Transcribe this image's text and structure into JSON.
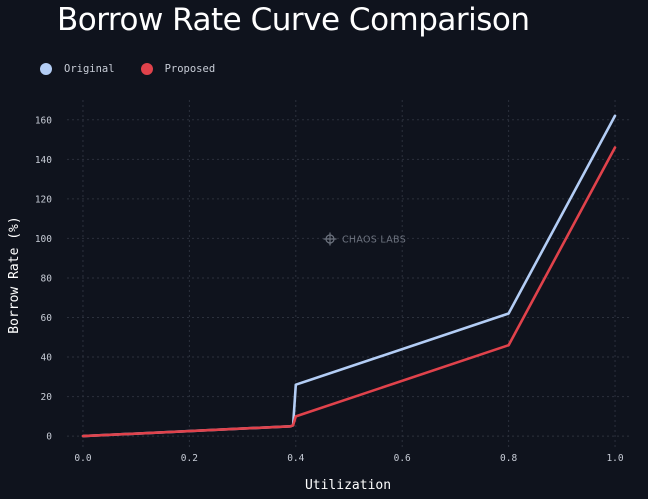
{
  "chart_data": {
    "type": "line",
    "title": "Borrow Rate Curve Comparison",
    "xlabel": "Utilization",
    "ylabel": "Borrow Rate (%)",
    "xlim": [
      -0.03,
      1.03
    ],
    "ylim": [
      -6,
      170
    ],
    "x_ticks": [
      "0.0",
      "0.2",
      "0.4",
      "0.6",
      "0.8",
      "1.0"
    ],
    "y_ticks": [
      "0",
      "20",
      "40",
      "60",
      "80",
      "100",
      "120",
      "140",
      "160"
    ],
    "grid": true,
    "legend_position": "top-left",
    "watermark": "CHAOS LABS",
    "series": [
      {
        "name": "Original",
        "color": "#b3cdf5",
        "points": [
          [
            0.0,
            0
          ],
          [
            0.39,
            5
          ],
          [
            0.395,
            5.5
          ],
          [
            0.4,
            26
          ],
          [
            0.8,
            62
          ],
          [
            1.0,
            162
          ]
        ]
      },
      {
        "name": "Proposed",
        "color": "#e0424b",
        "points": [
          [
            0.0,
            0
          ],
          [
            0.39,
            5
          ],
          [
            0.395,
            5.5
          ],
          [
            0.4,
            10
          ],
          [
            0.8,
            46
          ],
          [
            1.0,
            146
          ]
        ]
      }
    ]
  }
}
